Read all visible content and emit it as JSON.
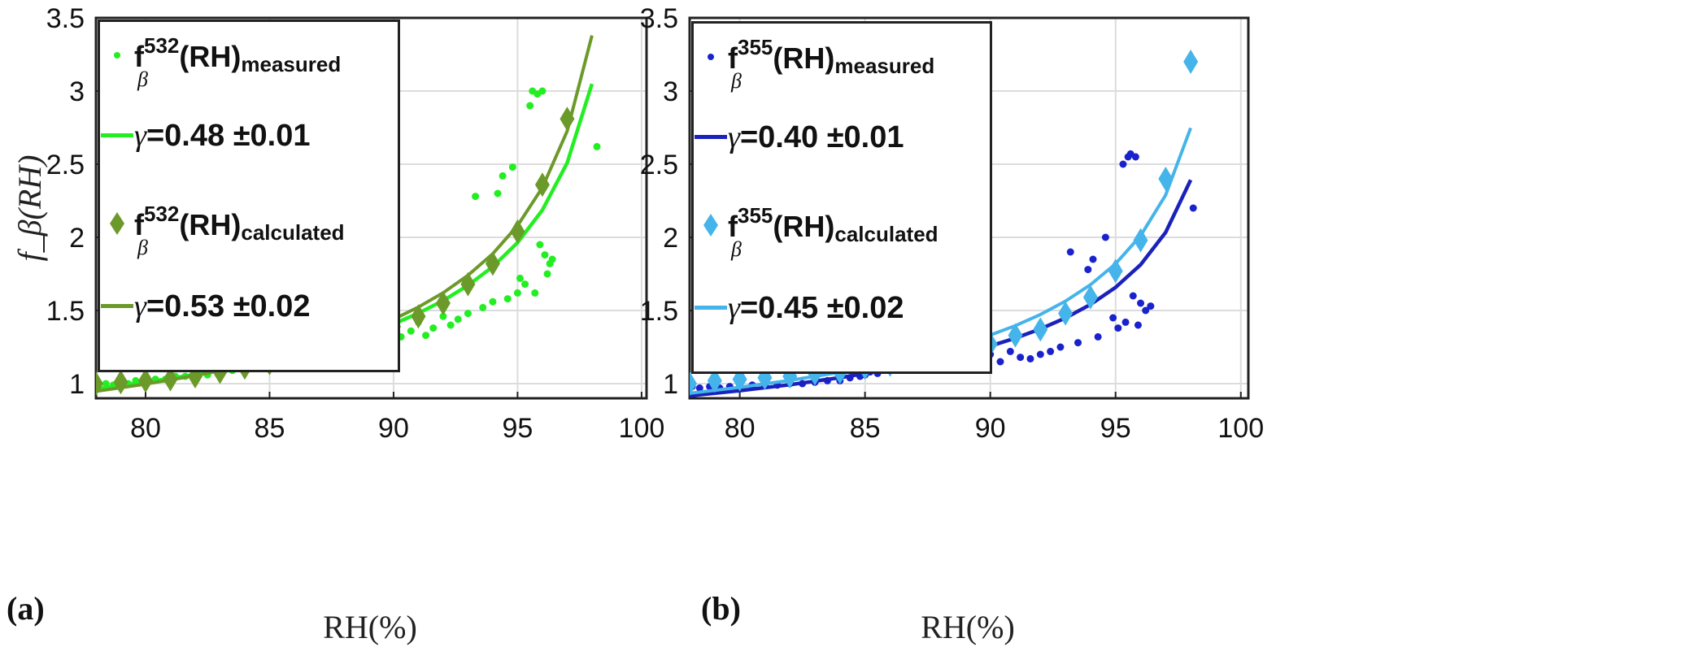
{
  "chart_data": [
    {
      "panel_label": "(a)",
      "type": "scatter",
      "xlabel": "RH(%)",
      "ylabel": "f_β(RH)",
      "xlim": [
        78,
        100.2
      ],
      "ylim": [
        0.9,
        3.5
      ],
      "xticks": [
        80,
        85,
        90,
        95,
        100
      ],
      "yticks": [
        1,
        1.5,
        2,
        2.5,
        3,
        3.5
      ],
      "grid": true,
      "legend_placement": "top-left",
      "legend": {
        "measured": {
          "f": "f",
          "sup": "532",
          "sub_beta": "β",
          "rh": "(RH)",
          "sub": "measured"
        },
        "fit_measured": {
          "gamma": "γ",
          "text": "=0.48 ±0.01"
        },
        "calculated": {
          "f": "f",
          "sup": "532",
          "sub_beta": "β",
          "rh": "(RH)",
          "sub": "calculated"
        },
        "fit_calculated": {
          "gamma": "γ",
          "text": "=0.53 ±0.02"
        }
      },
      "colors": {
        "measured": "#22ee22",
        "calculated": "#6b9a2a",
        "fit_measured": "#22ee22",
        "fit_calculated": "#6b9a2a"
      },
      "measured_points": {
        "x": [
          78.1,
          78.4,
          78.7,
          79.0,
          79.3,
          79.6,
          80.0,
          80.4,
          80.8,
          81.2,
          81.6,
          82.0,
          82.5,
          83.0,
          83.5,
          84.0,
          84.4,
          84.8,
          85.0,
          85.2,
          85.4,
          85.6,
          85.8,
          86.0,
          86.3,
          86.6,
          87.0,
          87.4,
          87.8,
          88.2,
          88.6,
          89.0,
          89.5,
          90.0,
          90.3,
          90.7,
          91.0,
          91.3,
          91.6,
          92.0,
          92.3,
          92.6,
          93.0,
          93.3,
          93.6,
          94.0,
          94.2,
          94.4,
          94.6,
          94.8,
          95.0,
          95.1,
          95.3,
          95.5,
          95.6,
          95.8,
          96.0,
          96.1,
          96.2,
          96.3,
          96.4,
          95.9,
          95.7,
          98.2
        ],
        "y": [
          0.98,
          1.0,
          0.99,
          1.01,
          1.0,
          1.02,
          1.02,
          1.03,
          1.03,
          1.05,
          1.05,
          1.06,
          1.06,
          1.08,
          1.09,
          1.11,
          1.12,
          1.15,
          1.18,
          1.22,
          1.25,
          1.26,
          1.27,
          1.27,
          1.25,
          1.27,
          1.27,
          1.28,
          1.27,
          1.3,
          1.32,
          1.33,
          1.36,
          1.38,
          1.32,
          1.36,
          1.42,
          1.33,
          1.38,
          1.46,
          1.4,
          1.44,
          1.48,
          2.28,
          1.52,
          1.56,
          2.3,
          2.42,
          1.58,
          2.48,
          1.62,
          1.72,
          1.68,
          2.9,
          3.0,
          2.98,
          3.0,
          1.88,
          1.75,
          1.82,
          1.85,
          1.95,
          1.62,
          2.62
        ]
      },
      "calculated_points": {
        "x": [
          78,
          79,
          80,
          81,
          82,
          83,
          84,
          85,
          86,
          87,
          88,
          89,
          90,
          91,
          92,
          93,
          94,
          95,
          96,
          97
        ],
        "y": [
          1.0,
          1.01,
          1.02,
          1.03,
          1.05,
          1.08,
          1.11,
          1.14,
          1.18,
          1.22,
          1.25,
          1.31,
          1.39,
          1.46,
          1.55,
          1.68,
          1.82,
          2.04,
          2.36,
          2.81
        ]
      },
      "fit_measured_curve": {
        "x": [
          78,
          80,
          82,
          84,
          86,
          88,
          90,
          91,
          92,
          93,
          94,
          95,
          96,
          97,
          98
        ],
        "y": [
          0.964,
          1.01,
          1.062,
          1.124,
          1.198,
          1.29,
          1.408,
          1.481,
          1.567,
          1.671,
          1.799,
          1.964,
          2.186,
          2.509,
          3.049
        ]
      },
      "fit_calculated_curve": {
        "x": [
          78,
          80,
          82,
          84,
          86,
          88,
          90,
          91,
          92,
          93,
          94,
          95,
          96,
          97,
          98
        ],
        "y": [
          0.948,
          0.997,
          1.055,
          1.123,
          1.205,
          1.307,
          1.44,
          1.523,
          1.621,
          1.74,
          1.888,
          2.08,
          2.34,
          2.726,
          3.38
        ]
      }
    },
    {
      "panel_label": "(b)",
      "type": "scatter",
      "xlabel": "RH(%)",
      "ylabel": "",
      "xlim": [
        78,
        100.3
      ],
      "ylim": [
        0.9,
        3.5
      ],
      "xticks": [
        80,
        85,
        90,
        95,
        100
      ],
      "yticks": [
        1,
        1.5,
        2,
        2.5,
        3,
        3.5
      ],
      "grid": true,
      "legend_placement": "top-left",
      "legend": {
        "measured": {
          "f": "f",
          "sup": "355",
          "sub_beta": "β",
          "rh": "(RH)",
          "sub": "measured"
        },
        "fit_measured": {
          "gamma": "γ",
          "text": "=0.40 ±0.01"
        },
        "calculated": {
          "f": "f",
          "sup": "355",
          "sub_beta": "β",
          "rh": "(RH)",
          "sub": "calculated"
        },
        "fit_calculated": {
          "gamma": "γ",
          "text": "=0.45 ±0.02"
        }
      },
      "colors": {
        "measured": "#1a22cc",
        "calculated": "#45b4ea",
        "fit_measured": "#1a22bb",
        "fit_calculated": "#45b4ea"
      },
      "measured_points": {
        "x": [
          78.1,
          78.4,
          78.8,
          79.2,
          79.6,
          80.0,
          80.5,
          81.0,
          81.5,
          82.0,
          82.5,
          83.0,
          83.5,
          84.0,
          84.4,
          84.8,
          85.0,
          85.2,
          85.5,
          85.8,
          86.1,
          86.5,
          87.0,
          87.5,
          88.0,
          88.5,
          89.0,
          89.5,
          90.0,
          90.4,
          90.8,
          91.2,
          91.6,
          92.0,
          92.4,
          92.8,
          93.2,
          93.5,
          93.9,
          94.1,
          94.3,
          94.6,
          94.9,
          95.1,
          95.3,
          95.5,
          95.6,
          95.7,
          95.8,
          95.9,
          96.0,
          96.2,
          96.4,
          95.4,
          98.1
        ],
        "y": [
          0.98,
          0.97,
          0.98,
          0.97,
          0.98,
          0.98,
          0.99,
          0.99,
          0.99,
          1.0,
          1.0,
          1.01,
          1.02,
          1.02,
          1.04,
          1.05,
          1.06,
          1.08,
          1.07,
          1.1,
          1.1,
          1.12,
          1.12,
          1.14,
          1.13,
          1.16,
          1.16,
          1.18,
          1.2,
          1.15,
          1.22,
          1.18,
          1.17,
          1.2,
          1.22,
          1.25,
          1.9,
          1.28,
          1.78,
          1.85,
          1.32,
          2.0,
          1.45,
          1.38,
          2.5,
          2.55,
          2.57,
          1.6,
          2.55,
          1.4,
          1.55,
          1.5,
          1.53,
          1.42,
          2.2
        ]
      },
      "calculated_points": {
        "x": [
          78,
          79,
          80,
          81,
          82,
          83,
          84,
          85,
          86,
          87,
          88,
          89,
          90,
          91,
          92,
          93,
          94,
          95,
          96,
          97,
          98
        ],
        "y": [
          1.0,
          1.02,
          1.03,
          1.04,
          1.05,
          1.07,
          1.08,
          1.11,
          1.13,
          1.17,
          1.2,
          1.23,
          1.27,
          1.33,
          1.37,
          1.48,
          1.59,
          1.77,
          1.98,
          2.4,
          3.2
        ]
      },
      "fit_measured_curve": {
        "x": [
          78,
          80,
          82,
          84,
          86,
          88,
          90,
          91,
          92,
          93,
          94,
          95,
          96,
          97,
          98
        ],
        "y": [
          0.917,
          0.952,
          0.993,
          1.041,
          1.098,
          1.168,
          1.257,
          1.311,
          1.374,
          1.449,
          1.541,
          1.658,
          1.813,
          2.034,
          2.392
        ]
      },
      "fit_calculated_curve": {
        "x": [
          78,
          80,
          82,
          84,
          86,
          88,
          90,
          91,
          92,
          93,
          94,
          95,
          96,
          97,
          98
        ],
        "y": [
          0.934,
          0.975,
          1.022,
          1.078,
          1.145,
          1.227,
          1.332,
          1.396,
          1.472,
          1.564,
          1.676,
          1.819,
          2.011,
          2.289,
          2.748
        ]
      }
    }
  ]
}
